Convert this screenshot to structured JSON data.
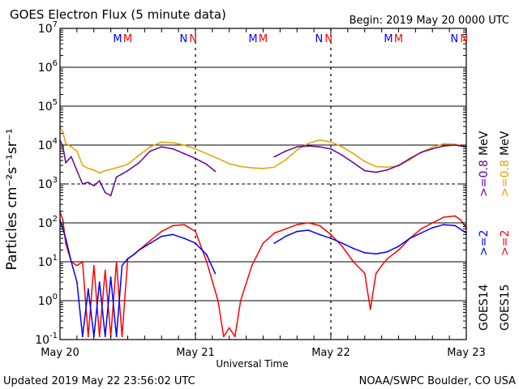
{
  "header": {
    "title": "GOES Electron Flux (5 minute data)",
    "begin": "Begin: 2019 May 20 0000 UTC"
  },
  "footer": {
    "updated": "Updated 2019 May 22 23:56:02 UTC",
    "credit": "NOAA/SWPC Boulder, CO USA"
  },
  "colors": {
    "goes14_2mev": "#0000ff",
    "goes15_2mev": "#ff0000",
    "goes14_08mev": "#660099",
    "goes15_08mev": "#e8a000",
    "frame": "#000000"
  },
  "chart_data": {
    "type": "line",
    "title": "GOES Electron Flux (5 minute data)",
    "xlabel": "Universal Time",
    "ylabel": "Particles cm⁻²s⁻¹sr⁻¹",
    "yscale": "log",
    "ylim": [
      0.1,
      10000000
    ],
    "xlim": [
      0,
      72
    ],
    "x_unit": "hours since 2019 May 20 0000 UTC",
    "yticks": [
      {
        "value": 0.1,
        "base": "10",
        "exp": "-1"
      },
      {
        "value": 1,
        "base": "10",
        "exp": "0"
      },
      {
        "value": 10,
        "base": "10",
        "exp": "1"
      },
      {
        "value": 100,
        "base": "10",
        "exp": "2"
      },
      {
        "value": 1000,
        "base": "10",
        "exp": "3"
      },
      {
        "value": 10000,
        "base": "10",
        "exp": "4"
      },
      {
        "value": 100000,
        "base": "10",
        "exp": "5"
      },
      {
        "value": 1000000,
        "base": "10",
        "exp": "6"
      },
      {
        "value": 10000000,
        "base": "10",
        "exp": "7"
      }
    ],
    "xticks": [
      {
        "value": 0,
        "label": "May 20"
      },
      {
        "value": 24,
        "label": "May 21"
      },
      {
        "value": 48,
        "label": "May 22"
      },
      {
        "value": 72,
        "label": "May 23"
      }
    ],
    "threshold": 1000,
    "grid": true,
    "day_markers": [
      {
        "day": 0,
        "marks": [
          {
            "text": "M",
            "color": "#0000ff",
            "hour": 10.2
          },
          {
            "text": "M",
            "color": "#ff0000",
            "hour": 12.0
          },
          {
            "text": "N",
            "color": "#0000ff",
            "hour": 21.9
          },
          {
            "text": "N",
            "color": "#ff0000",
            "hour": 23.6
          }
        ]
      },
      {
        "day": 1,
        "marks": [
          {
            "text": "M",
            "color": "#0000ff",
            "hour": 34.2
          },
          {
            "text": "M",
            "color": "#ff0000",
            "hour": 36.0
          },
          {
            "text": "N",
            "color": "#0000ff",
            "hour": 45.9
          },
          {
            "text": "N",
            "color": "#ff0000",
            "hour": 47.6
          }
        ]
      },
      {
        "day": 2,
        "marks": [
          {
            "text": "M",
            "color": "#0000ff",
            "hour": 58.2
          },
          {
            "text": "M",
            "color": "#ff0000",
            "hour": 60.0
          },
          {
            "text": "N",
            "color": "#0000ff",
            "hour": 69.9
          },
          {
            "text": "N",
            "color": "#ff0000",
            "hour": 71.6
          }
        ]
      }
    ],
    "legend": {
      "placement": "right-vertical",
      "groups": [
        {
          "satellite": "GOES14",
          "satellite_color": "#000000",
          "energy": ">=2",
          "energy_color": "#0000ff",
          "high_label": ">=0.8",
          "high_color": "#660099"
        },
        {
          "satellite": "GOES15",
          "satellite_color": "#000000",
          "energy": ">=2",
          "energy_color": "#ff0000",
          "high_label": ">=0.8",
          "high_color": "#e8a000"
        }
      ],
      "unit": "MeV"
    },
    "series": [
      {
        "name": "GOES15 >=0.8 MeV",
        "color": "#e8a000",
        "x": [
          0,
          0.5,
          1,
          2,
          3,
          4,
          5,
          6,
          7,
          8,
          10,
          12,
          14,
          16,
          18,
          20,
          22,
          24,
          26,
          28,
          30,
          32,
          34,
          36,
          38,
          40,
          42,
          44,
          46,
          48,
          50,
          52,
          54,
          56,
          58,
          60,
          62,
          64,
          66,
          68,
          70,
          72
        ],
        "y": [
          28000,
          22000,
          11000,
          9000,
          7000,
          3000,
          2500,
          2300,
          1900,
          2200,
          2600,
          3200,
          5500,
          9000,
          12000,
          11500,
          10000,
          8000,
          6000,
          4500,
          3300,
          2800,
          2600,
          2500,
          2700,
          4200,
          7500,
          11000,
          13500,
          12000,
          9000,
          6000,
          3800,
          2800,
          2700,
          2900,
          4200,
          6500,
          8800,
          10800,
          10500,
          9500
        ]
      },
      {
        "name": "GOES14 >=0.8 MeV",
        "color": "#660099",
        "x": [
          0,
          0.5,
          1,
          2,
          3,
          4,
          5,
          6,
          7,
          8,
          9,
          10,
          11,
          12,
          14,
          16,
          18,
          20,
          22,
          24,
          26,
          27.5,
          38,
          40,
          42,
          44,
          46,
          48,
          50,
          52,
          54,
          56,
          58,
          60,
          62,
          64,
          66,
          68,
          70,
          72
        ],
        "y": [
          13000,
          9500,
          3500,
          5000,
          2200,
          1000,
          1100,
          900,
          1200,
          600,
          500,
          1500,
          1800,
          2200,
          3500,
          7000,
          9000,
          8000,
          6000,
          4500,
          3200,
          2100,
          5000,
          7000,
          9000,
          9500,
          9000,
          8000,
          5500,
          3500,
          2200,
          2000,
          2300,
          3000,
          4500,
          6500,
          8000,
          9500,
          10000,
          9000
        ]
      },
      {
        "name": "GOES15 >=2 MeV",
        "color": "#ff0000",
        "x": [
          0,
          0.5,
          1,
          2,
          3,
          4,
          5,
          6,
          7,
          8,
          9,
          10,
          11,
          12,
          13,
          14,
          16,
          18,
          20,
          22,
          24,
          26,
          28,
          29,
          30,
          31,
          32,
          34,
          36,
          38,
          40,
          42,
          44,
          46,
          48,
          50,
          52,
          54,
          55,
          56,
          57,
          58,
          60,
          62,
          64,
          66,
          68,
          70,
          71,
          72
        ],
        "y": [
          190,
          120,
          30,
          10,
          8,
          10,
          0.12,
          8,
          0.12,
          6,
          0.12,
          10,
          0.12,
          12,
          15,
          20,
          35,
          60,
          85,
          90,
          60,
          10,
          1,
          0.12,
          0.2,
          0.12,
          1,
          8,
          30,
          55,
          70,
          90,
          100,
          85,
          50,
          25,
          10,
          5,
          0.6,
          5,
          8,
          12,
          20,
          40,
          70,
          100,
          140,
          150,
          120,
          75
        ]
      },
      {
        "name": "GOES14 >=2 MeV",
        "color": "#0000ff",
        "x": [
          0,
          1,
          2,
          3,
          4,
          5,
          6,
          7,
          8,
          9,
          10,
          11,
          12,
          13,
          14,
          16,
          18,
          20,
          22,
          24,
          26,
          27.5,
          38,
          40,
          42,
          44,
          46,
          48,
          50,
          52,
          54,
          56,
          58,
          60,
          62,
          64,
          66,
          68,
          70,
          72
        ],
        "y": [
          120,
          40,
          10,
          3,
          0.12,
          2,
          0.12,
          3,
          0.12,
          4,
          0.12,
          8,
          12,
          15,
          20,
          30,
          45,
          50,
          40,
          30,
          15,
          5,
          30,
          45,
          60,
          65,
          50,
          40,
          30,
          22,
          17,
          16,
          18,
          25,
          40,
          55,
          75,
          90,
          85,
          55
        ]
      }
    ]
  }
}
